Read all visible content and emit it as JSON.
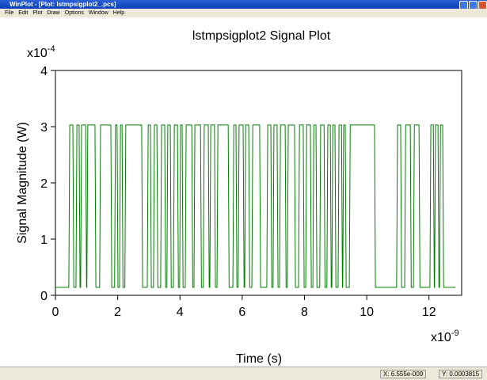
{
  "window": {
    "title": "WinPlot - [Plot: lstmpsigplot2_.pcs]",
    "menus": [
      "File",
      "Edit",
      "Plot",
      "Draw",
      "Options",
      "Window",
      "Help"
    ],
    "status": [
      "X: 6.555e-009",
      "Y: 0.0003815"
    ]
  },
  "chart_data": {
    "type": "line",
    "title": "lstmpsigplot2  Signal Plot",
    "x_label": "Time (s)",
    "y_label": "Signal Magnitude (W)",
    "x_multiplier": {
      "base": "x10",
      "exponent": "-9"
    },
    "y_multiplier": {
      "base": "x10",
      "exponent": "-4"
    },
    "color": "#008000",
    "xlim": [
      0,
      13.05
    ],
    "ylim": [
      0,
      4
    ],
    "xticks": [
      0,
      2,
      4,
      6,
      8,
      10,
      12
    ],
    "yticks": [
      0,
      1,
      2,
      3,
      4
    ],
    "x": [
      0,
      0.43,
      0.46,
      0.56,
      0.59,
      0.66,
      0.69,
      0.76,
      0.79,
      0.81,
      0.84,
      0.97,
      1.0,
      1.01,
      1.04,
      1.27,
      1.3,
      1.42,
      1.45,
      1.78,
      1.81,
      1.9,
      1.93,
      1.98,
      2.01,
      2.06,
      2.09,
      2.14,
      2.17,
      2.23,
      2.26,
      2.77,
      2.8,
      2.95,
      2.98,
      3.05,
      3.08,
      3.15,
      3.18,
      3.26,
      3.29,
      3.38,
      3.41,
      3.51,
      3.54,
      3.58,
      3.61,
      3.69,
      3.72,
      3.79,
      3.82,
      3.92,
      3.95,
      3.99,
      4.02,
      4.07,
      4.1,
      4.17,
      4.2,
      4.38,
      4.41,
      4.45,
      4.48,
      4.66,
      4.69,
      4.75,
      4.78,
      4.91,
      4.94,
      4.96,
      4.99,
      5.11,
      5.14,
      5.19,
      5.22,
      5.55,
      5.58,
      5.7,
      5.73,
      5.8,
      5.83,
      5.87,
      5.9,
      6.03,
      6.06,
      6.08,
      6.11,
      6.21,
      6.24,
      6.31,
      6.34,
      6.56,
      6.59,
      6.79,
      6.82,
      6.92,
      6.95,
      6.99,
      7.02,
      7.12,
      7.15,
      7.2,
      7.23,
      7.38,
      7.41,
      7.45,
      7.48,
      7.68,
      7.71,
      7.81,
      7.84,
      7.96,
      7.99,
      8.04,
      8.07,
      8.19,
      8.22,
      8.27,
      8.3,
      8.37,
      8.4,
      8.49,
      8.52,
      8.63,
      8.66,
      8.72,
      8.75,
      8.83,
      8.86,
      8.88,
      8.91,
      8.98,
      9.01,
      9.08,
      9.11,
      9.19,
      9.22,
      9.23,
      9.26,
      9.31,
      9.34,
      9.44,
      9.47,
      10.25,
      10.28,
      10.96,
      10.99,
      11.09,
      11.12,
      11.22,
      11.25,
      11.4,
      11.43,
      11.5,
      11.53,
      11.68,
      11.71,
      12.03,
      12.06,
      12.14,
      12.17,
      12.18,
      12.21,
      12.29,
      12.32,
      12.34,
      12.37,
      12.44,
      12.47,
      12.85
    ],
    "y": [
      0.14,
      0.14,
      3.03,
      3.03,
      0.14,
      0.14,
      3.03,
      3.03,
      0.14,
      0.14,
      3.03,
      3.03,
      0.14,
      0.14,
      3.03,
      3.03,
      0.14,
      0.14,
      3.03,
      3.03,
      0.14,
      0.14,
      3.03,
      3.03,
      0.14,
      0.14,
      3.03,
      3.03,
      0.14,
      0.14,
      3.03,
      3.03,
      0.14,
      0.14,
      3.03,
      3.03,
      0.14,
      0.14,
      3.03,
      3.03,
      0.14,
      0.14,
      3.03,
      3.03,
      0.14,
      0.14,
      3.03,
      3.03,
      0.14,
      0.14,
      3.03,
      3.03,
      0.14,
      0.14,
      3.03,
      3.03,
      0.14,
      0.14,
      3.03,
      3.03,
      0.14,
      0.14,
      3.03,
      3.03,
      0.14,
      0.14,
      3.03,
      3.03,
      0.14,
      0.14,
      3.03,
      3.03,
      0.14,
      0.14,
      3.03,
      3.03,
      0.14,
      0.14,
      3.03,
      3.03,
      0.14,
      0.14,
      3.03,
      3.03,
      0.14,
      0.14,
      3.03,
      3.03,
      0.14,
      0.14,
      3.03,
      3.03,
      0.14,
      0.14,
      3.03,
      3.03,
      0.14,
      0.14,
      3.03,
      3.03,
      0.14,
      0.14,
      3.03,
      3.03,
      0.14,
      0.14,
      3.03,
      3.03,
      0.14,
      0.14,
      3.03,
      3.03,
      0.14,
      0.14,
      3.03,
      3.03,
      0.14,
      0.14,
      3.03,
      3.03,
      0.14,
      0.14,
      3.03,
      3.03,
      0.14,
      0.14,
      3.03,
      3.03,
      0.14,
      0.14,
      3.03,
      3.03,
      0.14,
      0.14,
      3.03,
      3.03,
      0.14,
      0.14,
      3.03,
      3.03,
      0.14,
      0.14,
      3.03,
      3.03,
      0.14,
      0.14,
      3.03,
      3.03,
      0.14,
      0.14,
      3.03,
      3.03,
      0.14,
      0.14,
      3.03,
      3.03,
      0.14,
      0.14,
      3.03,
      3.03,
      0.14,
      0.14,
      3.03,
      3.03,
      0.14,
      0.14,
      3.03,
      3.03,
      0.14,
      0.14
    ]
  }
}
